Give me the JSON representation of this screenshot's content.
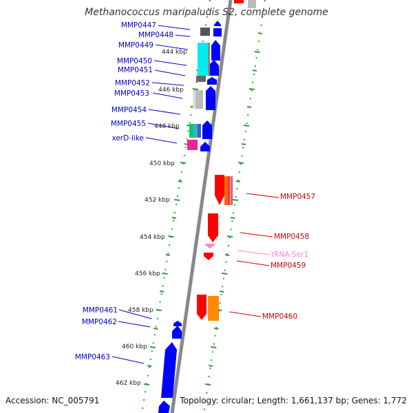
{
  "title": "Methanococcus maripaludis S2, complete genome",
  "accession": "Accession: NC_005791",
  "topology": "Topology: circular; Length: 1,661,137 bp; Genes: 1,772",
  "colors": {
    "forward_label": "#0000cc",
    "reverse_label": "#cc0000",
    "trna_label": "#ee88cc",
    "backbone": "#888888",
    "ticks": "#339933",
    "gene_blue": "#0000ff",
    "gene_red": "#ff0000"
  },
  "kbp_ticks": [
    "444 kbp",
    "446 kbp",
    "448 kbp",
    "450 kbp",
    "452 kbp",
    "454 kbp",
    "456 kbp",
    "458 kbp",
    "460 kbp",
    "462 kbp"
  ],
  "left_labels": [
    "MMP0447",
    "MMP0448",
    "MMP0449",
    "MMP0450",
    "MMP0451",
    "MMP0452",
    "MMP0453",
    "MMP0454",
    "MMP0455",
    "xerD-like",
    "MMP0461",
    "MMP0462",
    "MMP0463"
  ],
  "right_labels": [
    "MMP0457",
    "MMP0458",
    "tRNA-Ser1",
    "MMP0459",
    "MMP0460"
  ]
}
